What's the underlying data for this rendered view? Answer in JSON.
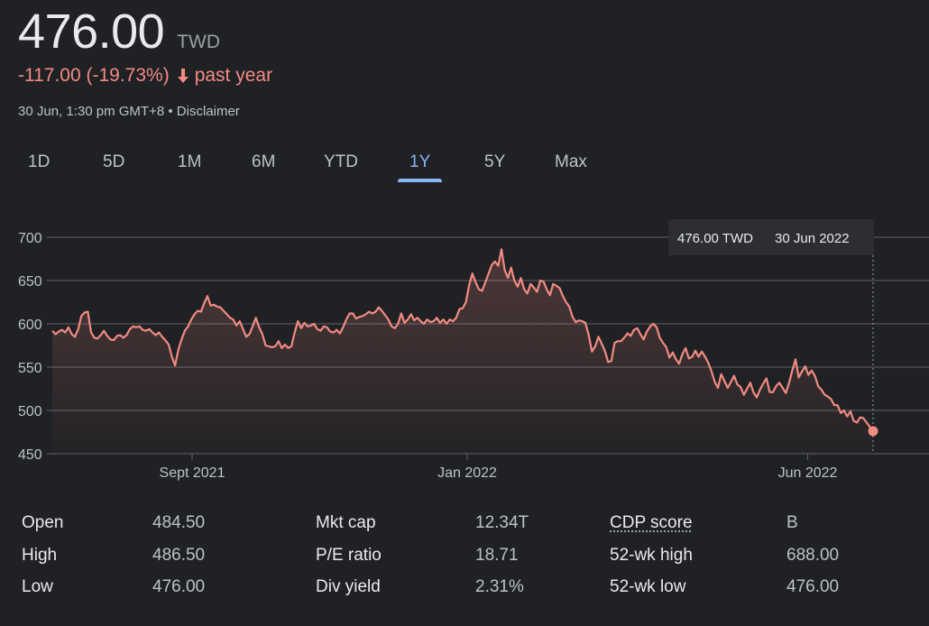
{
  "quote": {
    "price": "476.00",
    "currency": "TWD",
    "change": "-117.00 (-19.73%)",
    "change_period": "past year",
    "timestamp": "30 Jun, 1:30 pm GMT+8",
    "separator": "•",
    "disclaimer": "Disclaimer"
  },
  "range_tabs": [
    {
      "label": "1D"
    },
    {
      "label": "5D"
    },
    {
      "label": "1M"
    },
    {
      "label": "6M"
    },
    {
      "label": "YTD"
    },
    {
      "label": "1Y",
      "active": true
    },
    {
      "label": "5Y"
    },
    {
      "label": "Max"
    }
  ],
  "tooltip": {
    "value": "476.00 TWD",
    "date": "30 Jun 2022"
  },
  "colors": {
    "accent": "#8ab4f8",
    "line": "#f28b82",
    "grid": "#5f6368",
    "background": "#202124"
  },
  "chart_data": {
    "type": "area",
    "title": "",
    "xlabel": "",
    "ylabel": "",
    "ylim": [
      450,
      700
    ],
    "y_ticks": [
      "700",
      "650",
      "600",
      "550",
      "500",
      "450"
    ],
    "x_ticks": [
      "Sept 2021",
      "Jan 2022",
      "Jun 2022"
    ],
    "grid": true,
    "x_start": "2021-07-01",
    "x_end": "2022-06-30",
    "series": [
      {
        "values": [
          592,
          588,
          591,
          593,
          590,
          596,
          588,
          585,
          594,
          609,
          613,
          614,
          590,
          584,
          583,
          587,
          592,
          586,
          582,
          581,
          586,
          587,
          584,
          587,
          594,
          597,
          596,
          597,
          593,
          592,
          594,
          590,
          587,
          590,
          585,
          581,
          576,
          562,
          552,
          570,
          582,
          592,
          597,
          605,
          611,
          615,
          614,
          624,
          632,
          621,
          622,
          620,
          619,
          615,
          611,
          607,
          605,
          598,
          603,
          594,
          585,
          588,
          597,
          607,
          596,
          588,
          575,
          574,
          573,
          574,
          580,
          572,
          576,
          572,
          574,
          590,
          603,
          595,
          601,
          597,
          598,
          600,
          594,
          592,
          597,
          596,
          591,
          590,
          593,
          589,
          596,
          605,
          612,
          612,
          606,
          608,
          609,
          611,
          614,
          612,
          614,
          619,
          615,
          610,
          605,
          597,
          595,
          600,
          612,
          601,
          605,
          611,
          604,
          607,
          603,
          600,
          605,
          602,
          603,
          607,
          601,
          605,
          600,
          605,
          603,
          607,
          617,
          618,
          625,
          645,
          658,
          648,
          640,
          638,
          648,
          658,
          668,
          672,
          667,
          686,
          662,
          653,
          665,
          650,
          643,
          653,
          640,
          635,
          646,
          642,
          637,
          650,
          649,
          640,
          633,
          646,
          644,
          641,
          632,
          625,
          620,
          608,
          602,
          604,
          603,
          601,
          587,
          568,
          574,
          585,
          577,
          569,
          556,
          557,
          578,
          580,
          580,
          584,
          589,
          586,
          593,
          595,
          588,
          582,
          591,
          597,
          600,
          596,
          584,
          578,
          573,
          561,
          567,
          559,
          554,
          565,
          572,
          560,
          562,
          569,
          562,
          568,
          562,
          555,
          545,
          533,
          526,
          542,
          534,
          526,
          533,
          540,
          530,
          527,
          518,
          525,
          532,
          521,
          515,
          524,
          531,
          537,
          521,
          521,
          528,
          532,
          526,
          520,
          532,
          546,
          559,
          538,
          545,
          551,
          541,
          546,
          540,
          528,
          524,
          518,
          516,
          513,
          506,
          506,
          497,
          500,
          493,
          499,
          488,
          486,
          492,
          491,
          486,
          481,
          476
        ]
      }
    ]
  },
  "stats": {
    "col1": [
      {
        "label": "Open",
        "value": "484.50"
      },
      {
        "label": "High",
        "value": "486.50"
      },
      {
        "label": "Low",
        "value": "476.00"
      }
    ],
    "col2": [
      {
        "label": "Mkt cap",
        "value": "12.34T"
      },
      {
        "label": "P/E ratio",
        "value": "18.71"
      },
      {
        "label": "Div yield",
        "value": "2.31%"
      }
    ],
    "col3": [
      {
        "label": "CDP score",
        "value": "B"
      },
      {
        "label": "52-wk high",
        "value": "688.00"
      },
      {
        "label": "52-wk low",
        "value": "476.00"
      }
    ]
  }
}
